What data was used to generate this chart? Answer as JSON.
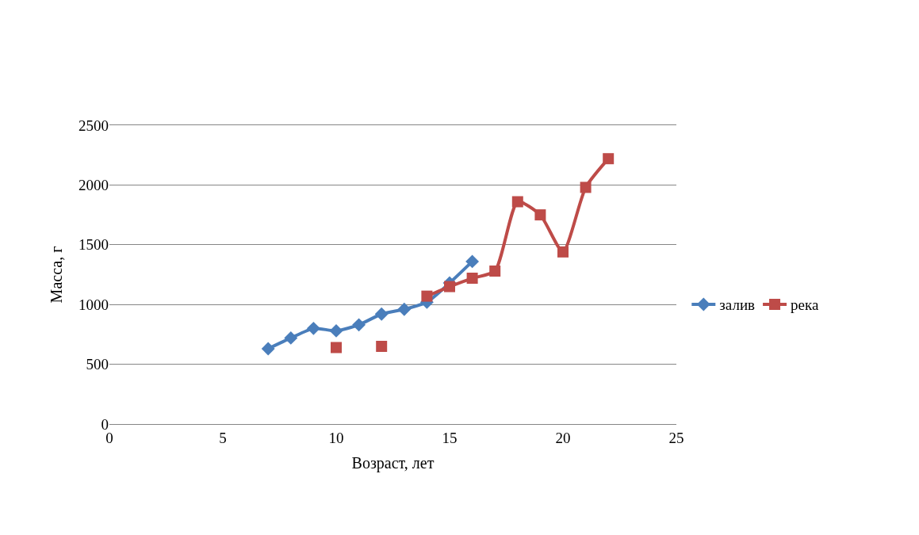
{
  "chart_data": {
    "type": "line",
    "xlabel": "Возраст, лет",
    "ylabel": "Масса, г",
    "xlim": [
      0,
      25
    ],
    "xticks": [
      0,
      5,
      10,
      15,
      20,
      25
    ],
    "ylim": [
      0,
      2500
    ],
    "yticks": [
      0,
      500,
      1000,
      1500,
      2000,
      2500
    ],
    "grid": "y",
    "legend": "right",
    "series": [
      {
        "name": "залив",
        "color": "#4a7ebb",
        "marker": "diamond",
        "x": [
          7,
          8,
          9,
          10,
          11,
          12,
          13,
          14,
          15,
          16
        ],
        "values": [
          630,
          720,
          800,
          780,
          830,
          920,
          960,
          1020,
          1180,
          1360
        ]
      },
      {
        "name": "река",
        "color": "#be4b48",
        "marker": "square",
        "x": [
          10,
          11,
          12,
          13,
          14,
          15,
          16,
          17,
          18,
          19,
          20,
          21,
          22
        ],
        "values": [
          640,
          null,
          650,
          null,
          1070,
          1150,
          1220,
          1280,
          1860,
          1750,
          1440,
          1980,
          2220
        ]
      }
    ]
  }
}
